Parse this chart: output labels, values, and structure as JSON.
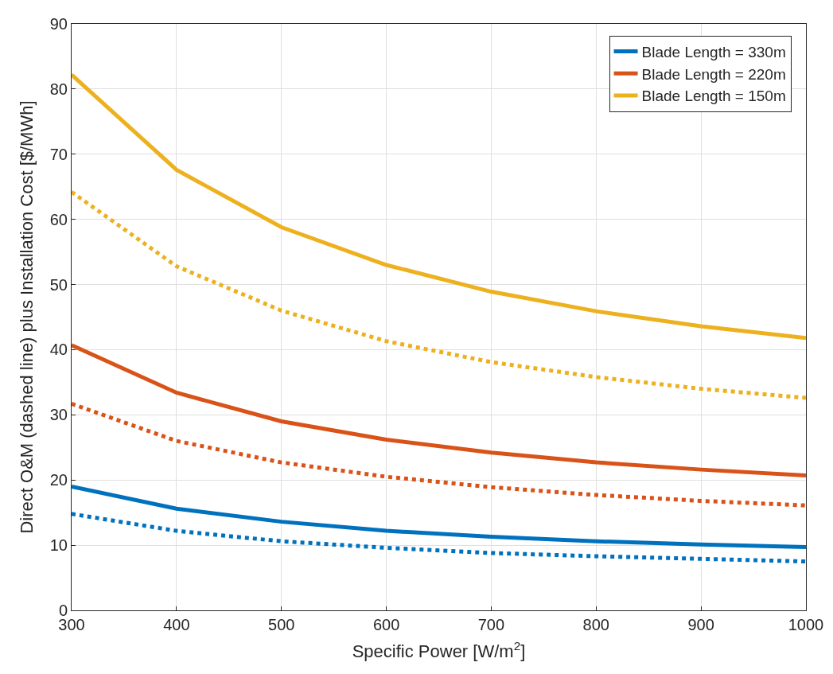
{
  "chart_data": {
    "type": "line",
    "xlabel": "Specific Power [W/m$^{2}$]",
    "ylabel": "Direct O&M (dashed line) plus Installation Cost [$/MWh]",
    "x": [
      300,
      400,
      500,
      600,
      700,
      800,
      900,
      1000
    ],
    "series": [
      {
        "name": "Blade Length = 330m",
        "color": "#0072bd",
        "line_style": "solid",
        "values": [
          19.0,
          15.6,
          13.6,
          12.2,
          11.3,
          10.6,
          10.1,
          9.7
        ]
      },
      {
        "name": "Blade Length = 220m",
        "color": "#d95319",
        "line_style": "solid",
        "values": [
          40.7,
          33.4,
          29.0,
          26.2,
          24.2,
          22.7,
          21.6,
          20.7
        ]
      },
      {
        "name": "Blade Length = 150m",
        "color": "#edb120",
        "line_style": "solid",
        "values": [
          82.2,
          67.6,
          58.8,
          53.0,
          48.9,
          45.9,
          43.6,
          41.8
        ]
      },
      {
        "color": "#edb120",
        "line_style": "dotted",
        "values": [
          64.2,
          52.8,
          46.0,
          41.3,
          38.1,
          35.8,
          34.0,
          32.6
        ]
      },
      {
        "color": "#d95319",
        "line_style": "dotted",
        "values": [
          31.7,
          26.0,
          22.7,
          20.5,
          18.9,
          17.7,
          16.8,
          16.1
        ]
      },
      {
        "color": "#0072bd",
        "line_style": "dotted",
        "values": [
          14.8,
          12.2,
          10.6,
          9.6,
          8.8,
          8.3,
          7.9,
          7.5
        ]
      }
    ],
    "xlim": [
      300,
      1000
    ],
    "xticks": [
      300,
      400,
      500,
      600,
      700,
      800,
      900,
      1000
    ],
    "ylim": [
      0,
      90
    ],
    "yticks": [
      0,
      10,
      20,
      30,
      40,
      50,
      60,
      70,
      80,
      90
    ],
    "grid": true,
    "legend": "top right",
    "marker": "none"
  }
}
